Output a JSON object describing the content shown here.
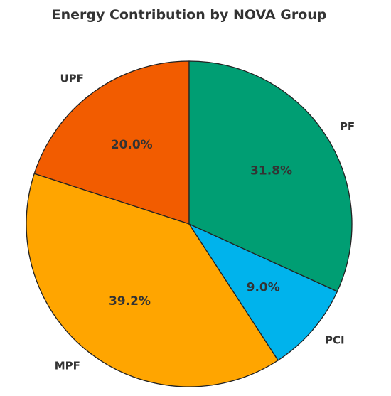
{
  "chart_data": {
    "type": "pie",
    "title": "Energy Contribution by NOVA Group",
    "start_angle_deg": 90,
    "direction": "counterclockwise",
    "slices": [
      {
        "label": "UPF",
        "value": 20.0,
        "pct_label": "20.0%",
        "color": "#F25C00"
      },
      {
        "label": "MPF",
        "value": 39.2,
        "pct_label": "39.2%",
        "color": "#FFA500"
      },
      {
        "label": "PCI",
        "value": 9.0,
        "pct_label": "9.0%",
        "color": "#00B3EC"
      },
      {
        "label": "PF",
        "value": 31.8,
        "pct_label": "31.8%",
        "color": "#009E73"
      }
    ]
  }
}
